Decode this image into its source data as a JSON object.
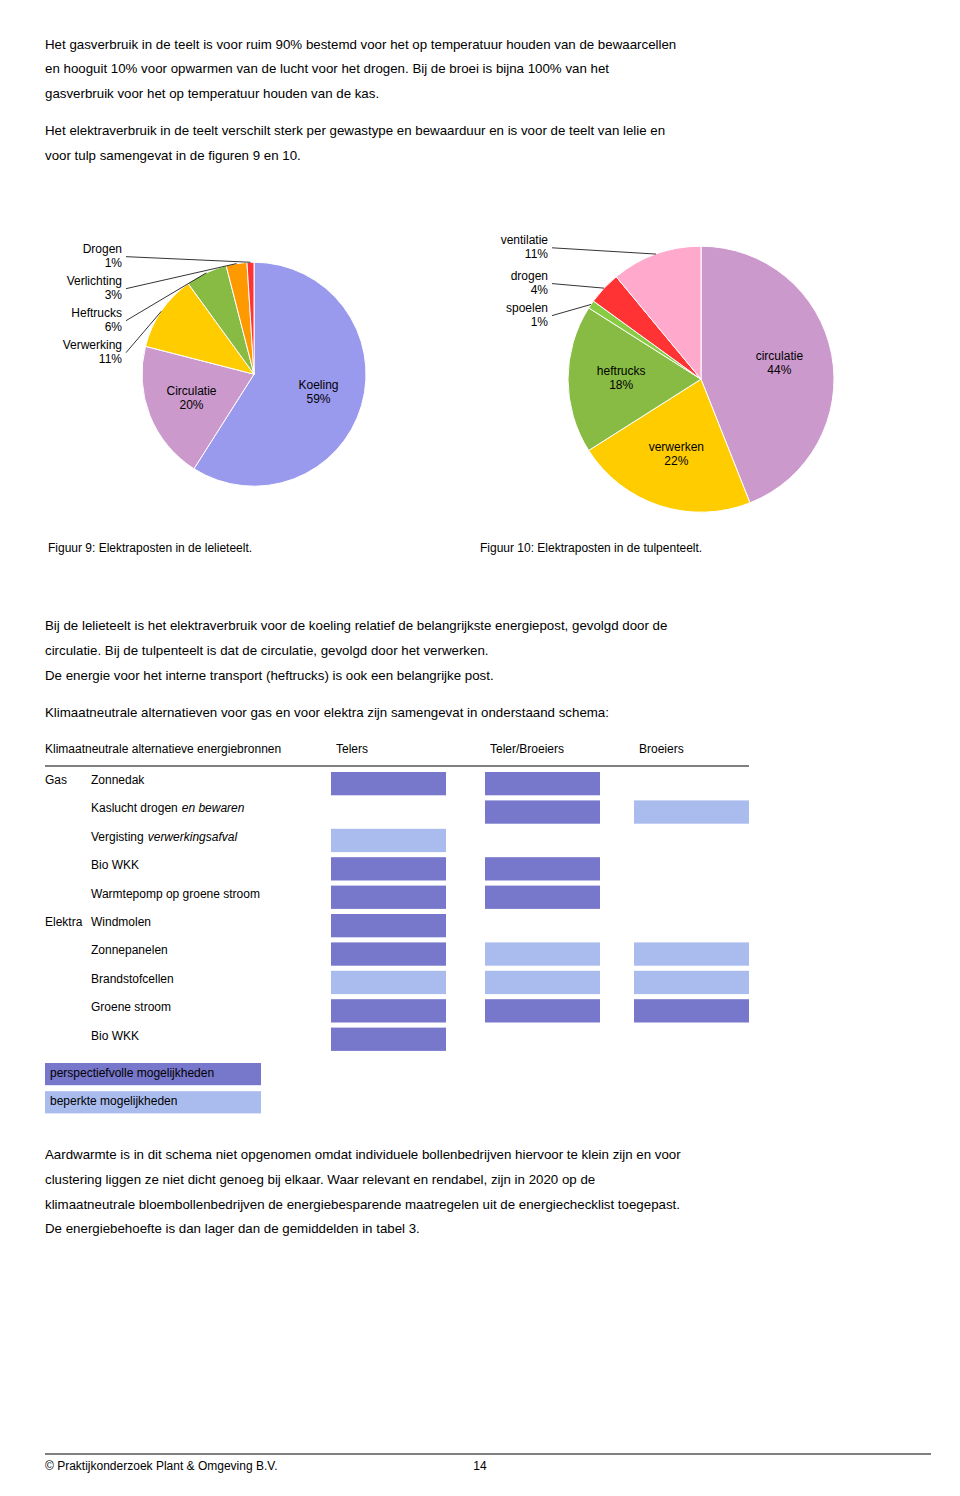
{
  "chart_data": [
    {
      "type": "pie",
      "title": "Figuur 9: Elektraposten in de lelieteelt.",
      "categories": [
        "Koeling",
        "Circulatie",
        "Verwerking",
        "Heftrucks",
        "Verlichting",
        "Drogen"
      ],
      "values": [
        59,
        20,
        11,
        6,
        3,
        1
      ],
      "value_labels": [
        "59%",
        "20%",
        "11%",
        "6%",
        "3%",
        "1%"
      ],
      "colors": [
        "#9999ee",
        "#cc99cc",
        "#ffcc00",
        "#88bb44",
        "#ff9900",
        "#ff3333"
      ],
      "data_labels": true
    },
    {
      "type": "pie",
      "title": "Figuur 10: Elektraposten in de tulpenteelt.",
      "categories": [
        "circulatie",
        "verwerken",
        "heftrucks",
        "spoelen",
        "drogen",
        "ventilatie"
      ],
      "values": [
        44,
        22,
        18,
        1,
        4,
        11
      ],
      "value_labels": [
        "44%",
        "22%",
        "18%",
        "1%",
        "4%",
        "11%"
      ],
      "colors": [
        "#cc99cc",
        "#ffcc00",
        "#88bb44",
        "#88cc44",
        "#ff3333",
        "#ffaacc"
      ],
      "data_labels": true
    }
  ],
  "text_before_charts": [
    [
      "Het gasverbruik in de teelt is voor ruim 90% bestemd voor het op temperatuur houden van de bewaarcellen",
      "en hooguit 10% voor opwarmen van de lucht voor het drogen. Bij de broei is bijna 100% van het",
      "gasverbruik voor het op temperatuur houden van de kas."
    ],
    [
      "Het elektraverbruik in de teelt verschilt sterk per gewastype en bewaarduur en is voor de teelt van lelie en",
      "voor tulp samengevat in de figuren 9 en 10."
    ]
  ],
  "text_after_charts": [
    [
      "Bij de lelieteelt is het elektraverbruik voor de koeling relatief de belangrijkste energiepost, gevolgd door de",
      "circulatie. Bij de tulpenteelt is dat de circulatie, gevolgd door het verwerken.",
      "De energie voor het interne transport (heftrucks) is ook een belangrijke post."
    ],
    [
      "Klimaatneutrale alternatieven voor gas en voor elektra zijn samengevat in onderstaand schema:"
    ]
  ],
  "table": {
    "title": "Klimaatneutrale alternatieve energiebronnen",
    "columns": [
      "Telers",
      "Teler/Broeiers",
      "Broeiers"
    ],
    "rows": [
      {
        "category": "Gas",
        "item": "Zonnedak",
        "cells": [
          0,
          0,
          null
        ]
      },
      {
        "category": null,
        "item": "Kaslucht drogen",
        "item_italic": "en bewaren",
        "cells": [
          null,
          0,
          1
        ]
      },
      {
        "category": null,
        "item": "Vergisting",
        "item_italic": "verwerkingsafval",
        "cells": [
          1,
          null,
          null
        ]
      },
      {
        "category": null,
        "item": "Bio WKK",
        "cells": [
          0,
          0,
          null
        ]
      },
      {
        "category": null,
        "item": "Warmtepomp op groene stroom",
        "cells": [
          0,
          0,
          null
        ]
      },
      {
        "category": "Elektra",
        "item": "Windmolen",
        "cells": [
          0,
          null,
          null
        ]
      },
      {
        "category": null,
        "item": "Zonnepanelen",
        "cells": [
          0,
          1,
          1
        ]
      },
      {
        "category": null,
        "item": "Brandstofcellen",
        "cells": [
          1,
          1,
          1
        ]
      },
      {
        "category": null,
        "item": "Groene stroom",
        "cells": [
          0,
          0,
          0
        ]
      },
      {
        "category": null,
        "item": "Bio WKK",
        "cells": [
          0,
          null,
          null
        ]
      }
    ],
    "legend": [
      {
        "name": "perspectiefvolle mogelijkheden",
        "color": "#7777cc"
      },
      {
        "name": "beperkte mogelijkheden",
        "color": "#aabbee"
      }
    ]
  },
  "text_after_table": [
    [
      "Aardwarmte is in dit schema niet opgenomen omdat individuele bollenbedrijven hiervoor te klein zijn en voor",
      "clustering liggen ze niet dicht genoeg bij elkaar. Waar relevant en rendabel, zijn in 2020 op de",
      "klimaatneutrale bloembollenbedrijven de energiebesparende maatregelen uit de energiechecklist toegepast.",
      "De energiebehoefte is dan lager dan de gemiddelden in tabel 3."
    ]
  ],
  "footer": {
    "left": "© Praktijkonderzoek Plant & Omgeving B.V.",
    "page": "14"
  }
}
